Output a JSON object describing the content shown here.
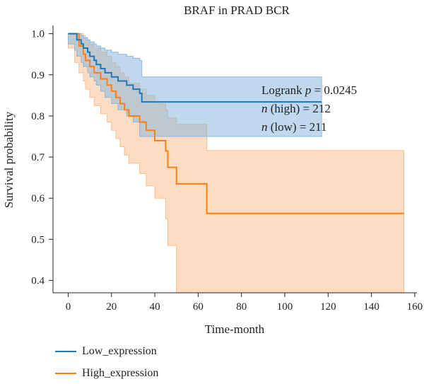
{
  "chart_data": {
    "type": "line",
    "title": "BRAF in PRAD BCR",
    "xlabel": "Time-month",
    "ylabel": "Survival probability",
    "xlim": [
      -7,
      161
    ],
    "ylim": [
      0.37,
      1.02
    ],
    "xticks": [
      0,
      20,
      40,
      60,
      80,
      100,
      120,
      140,
      160
    ],
    "yticks": [
      0.4,
      0.5,
      0.6,
      0.7,
      0.8,
      0.9,
      1.0
    ],
    "ytick_labels": [
      "0.4",
      "0.5",
      "0.6",
      "0.7",
      "0.8",
      "0.9",
      "1.0"
    ],
    "legend_position": "bottom-left",
    "annotations": {
      "logrank_prefix": "Logrank ",
      "logrank_p": "p",
      "logrank_value": " = 0.0245",
      "n_italic": "n",
      "n_high": " (high) = 212",
      "n_low": " (low) = 211"
    },
    "series": [
      {
        "name": "Low_expression",
        "color": "#1f77b4",
        "band_color": "#8bb8df",
        "x": [
          0,
          3,
          4,
          6,
          7,
          9,
          10,
          12,
          13,
          15,
          17,
          20,
          23,
          27,
          30,
          33,
          34,
          117
        ],
        "y": [
          1.0,
          1.0,
          0.985,
          0.975,
          0.965,
          0.955,
          0.945,
          0.935,
          0.925,
          0.915,
          0.905,
          0.895,
          0.885,
          0.875,
          0.865,
          0.855,
          0.834,
          0.834
        ],
        "lower": [
          1.0,
          0.975,
          0.96,
          0.945,
          0.93,
          0.92,
          0.905,
          0.895,
          0.885,
          0.875,
          0.86,
          0.845,
          0.83,
          0.815,
          0.8,
          0.785,
          0.75,
          0.75
        ],
        "upper": [
          1.0,
          1.0,
          1.0,
          0.995,
          0.99,
          0.985,
          0.98,
          0.975,
          0.97,
          0.965,
          0.96,
          0.955,
          0.95,
          0.945,
          0.94,
          0.935,
          0.895,
          0.895
        ]
      },
      {
        "name": "High_expression",
        "color": "#ff7f0e",
        "band_color": "#fbbf8e",
        "x": [
          0,
          3,
          5,
          7,
          8,
          10,
          12,
          15,
          18,
          20,
          22,
          24,
          26,
          28,
          33,
          36,
          40,
          45,
          46,
          50,
          64,
          155
        ],
        "y": [
          1.0,
          1.0,
          0.97,
          0.95,
          0.935,
          0.92,
          0.905,
          0.89,
          0.875,
          0.86,
          0.845,
          0.83,
          0.815,
          0.8,
          0.785,
          0.765,
          0.74,
          0.715,
          0.675,
          0.635,
          0.563,
          0.563
        ],
        "lower": [
          1.0,
          0.965,
          0.93,
          0.905,
          0.885,
          0.865,
          0.845,
          0.825,
          0.805,
          0.785,
          0.765,
          0.745,
          0.725,
          0.705,
          0.685,
          0.66,
          0.63,
          0.6,
          0.55,
          0.485,
          0.37,
          0.37
        ],
        "upper": [
          1.0,
          1.0,
          1.0,
          0.995,
          0.985,
          0.975,
          0.965,
          0.955,
          0.945,
          0.93,
          0.92,
          0.905,
          0.895,
          0.88,
          0.865,
          0.85,
          0.83,
          0.815,
          0.795,
          0.78,
          0.716,
          0.716
        ]
      }
    ]
  }
}
